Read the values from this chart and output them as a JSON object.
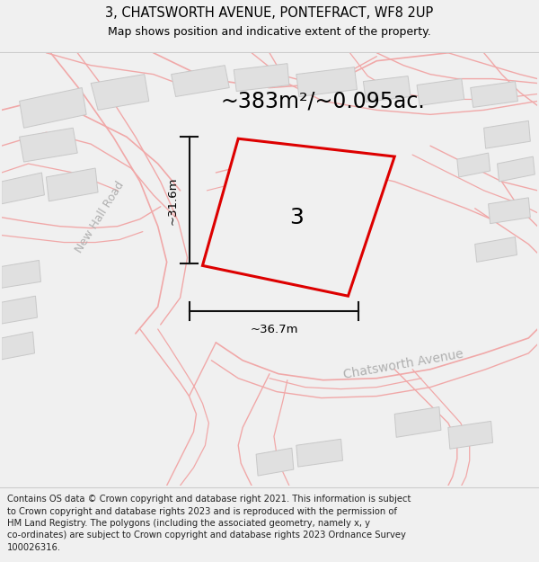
{
  "title_line1": "3, CHATSWORTH AVENUE, PONTEFRACT, WF8 2UP",
  "title_line2": "Map shows position and indicative extent of the property.",
  "area_text": "~383m²/~0.095ac.",
  "label_number": "3",
  "dim_vertical": "~31.6m",
  "dim_horizontal": "~36.7m",
  "road_label1": "New Hall Road",
  "road_label2": "Chatsworth Avenue",
  "footer_lines": [
    "Contains OS data © Crown copyright and database right 2021. This information is subject",
    "to Crown copyright and database rights 2023 and is reproduced with the permission of",
    "HM Land Registry. The polygons (including the associated geometry, namely x, y",
    "co-ordinates) are subject to Crown copyright and database rights 2023 Ordnance Survey",
    "100026316."
  ],
  "bg_color": "#f0f0f0",
  "map_bg": "#ffffff",
  "building_fill": "#e0e0e0",
  "building_edge": "#c8c8c8",
  "road_line_color": "#f0a8a8",
  "plot_fill": "#f0f0f0",
  "plot_edge": "#dd0000",
  "dim_color": "#111111",
  "road_label_color": "#b0b0b0",
  "title_fontsize": 10.5,
  "subtitle_fontsize": 9,
  "area_fontsize": 17,
  "label_fontsize": 18,
  "dim_fontsize": 9.5,
  "road_label_fontsize": 9,
  "footer_fontsize": 7.2
}
